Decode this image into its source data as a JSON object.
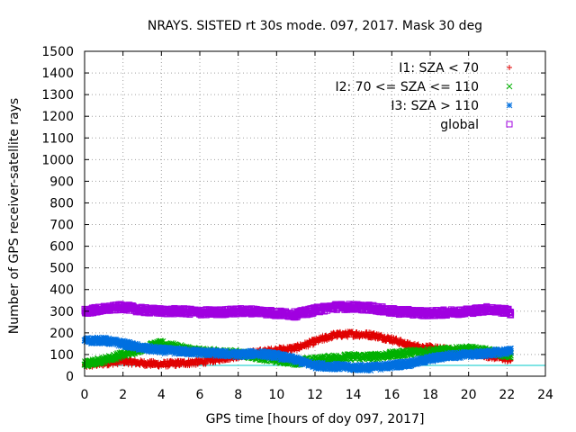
{
  "chart_data": {
    "type": "scatter",
    "title": "NRAYS. SISTED rt 30s mode. 097, 2017. Mask 30 deg",
    "xlabel": "GPS time [hours of doy 097, 2017]",
    "ylabel": "Number of GPS receiver-satellite rays",
    "xlim": [
      0,
      24
    ],
    "ylim": [
      0,
      1500
    ],
    "xticks": [
      "0",
      "2",
      "4",
      "6",
      "8",
      "10",
      "12",
      "14",
      "16",
      "18",
      "20",
      "22",
      "24"
    ],
    "yticks": [
      "0",
      "100",
      "200",
      "300",
      "400",
      "500",
      "600",
      "700",
      "800",
      "900",
      "1000",
      "1100",
      "1200",
      "1300",
      "1400",
      "1500"
    ],
    "grid": true,
    "legend_position": "top-right",
    "reference_line": {
      "y": 50,
      "color": "#00c8c8"
    },
    "series": [
      {
        "name": "I1: SZA < 70",
        "marker": "+",
        "color": "#e00000",
        "x": [
          0,
          1,
          2,
          3,
          4,
          5,
          6,
          7,
          8,
          9,
          10,
          11,
          12,
          13,
          14,
          15,
          16,
          17,
          18,
          19,
          20,
          21,
          22,
          22.2
        ],
        "y": [
          50,
          60,
          70,
          60,
          55,
          60,
          65,
          80,
          95,
          110,
          120,
          130,
          160,
          190,
          195,
          190,
          170,
          140,
          130,
          120,
          110,
          95,
          80,
          75
        ]
      },
      {
        "name": "I2: 70 <= SZA <= 110",
        "marker": "x",
        "color": "#00b000",
        "x": [
          0,
          1,
          2,
          3,
          4,
          5,
          6,
          7,
          8,
          9,
          10,
          11,
          12,
          13,
          14,
          15,
          16,
          17,
          18,
          19,
          20,
          21,
          22,
          22.2
        ],
        "y": [
          55,
          75,
          100,
          130,
          150,
          130,
          115,
          110,
          105,
          90,
          75,
          65,
          75,
          85,
          90,
          90,
          100,
          110,
          115,
          120,
          125,
          115,
          100,
          95
        ]
      },
      {
        "name": "I3: SZA > 110",
        "marker": "*",
        "color": "#0070e0",
        "x": [
          0,
          1,
          2,
          3,
          4,
          5,
          6,
          7,
          8,
          9,
          10,
          11,
          12,
          13,
          14,
          15,
          16,
          17,
          18,
          19,
          20,
          21,
          22,
          22.2
        ],
        "y": [
          165,
          165,
          150,
          130,
          120,
          115,
          110,
          105,
          100,
          105,
          95,
          75,
          50,
          45,
          40,
          40,
          50,
          60,
          80,
          95,
          100,
          105,
          115,
          115
        ]
      },
      {
        "name": "global",
        "marker": "square",
        "color": "#a000e0",
        "x": [
          0,
          1,
          2,
          3,
          4,
          5,
          6,
          7,
          8,
          9,
          10,
          11,
          12,
          13,
          14,
          15,
          16,
          17,
          18,
          19,
          20,
          21,
          22,
          22.2
        ],
        "y": [
          300,
          310,
          320,
          305,
          300,
          300,
          295,
          295,
          300,
          300,
          290,
          285,
          305,
          320,
          320,
          315,
          300,
          295,
          290,
          295,
          300,
          310,
          300,
          295
        ]
      }
    ]
  }
}
